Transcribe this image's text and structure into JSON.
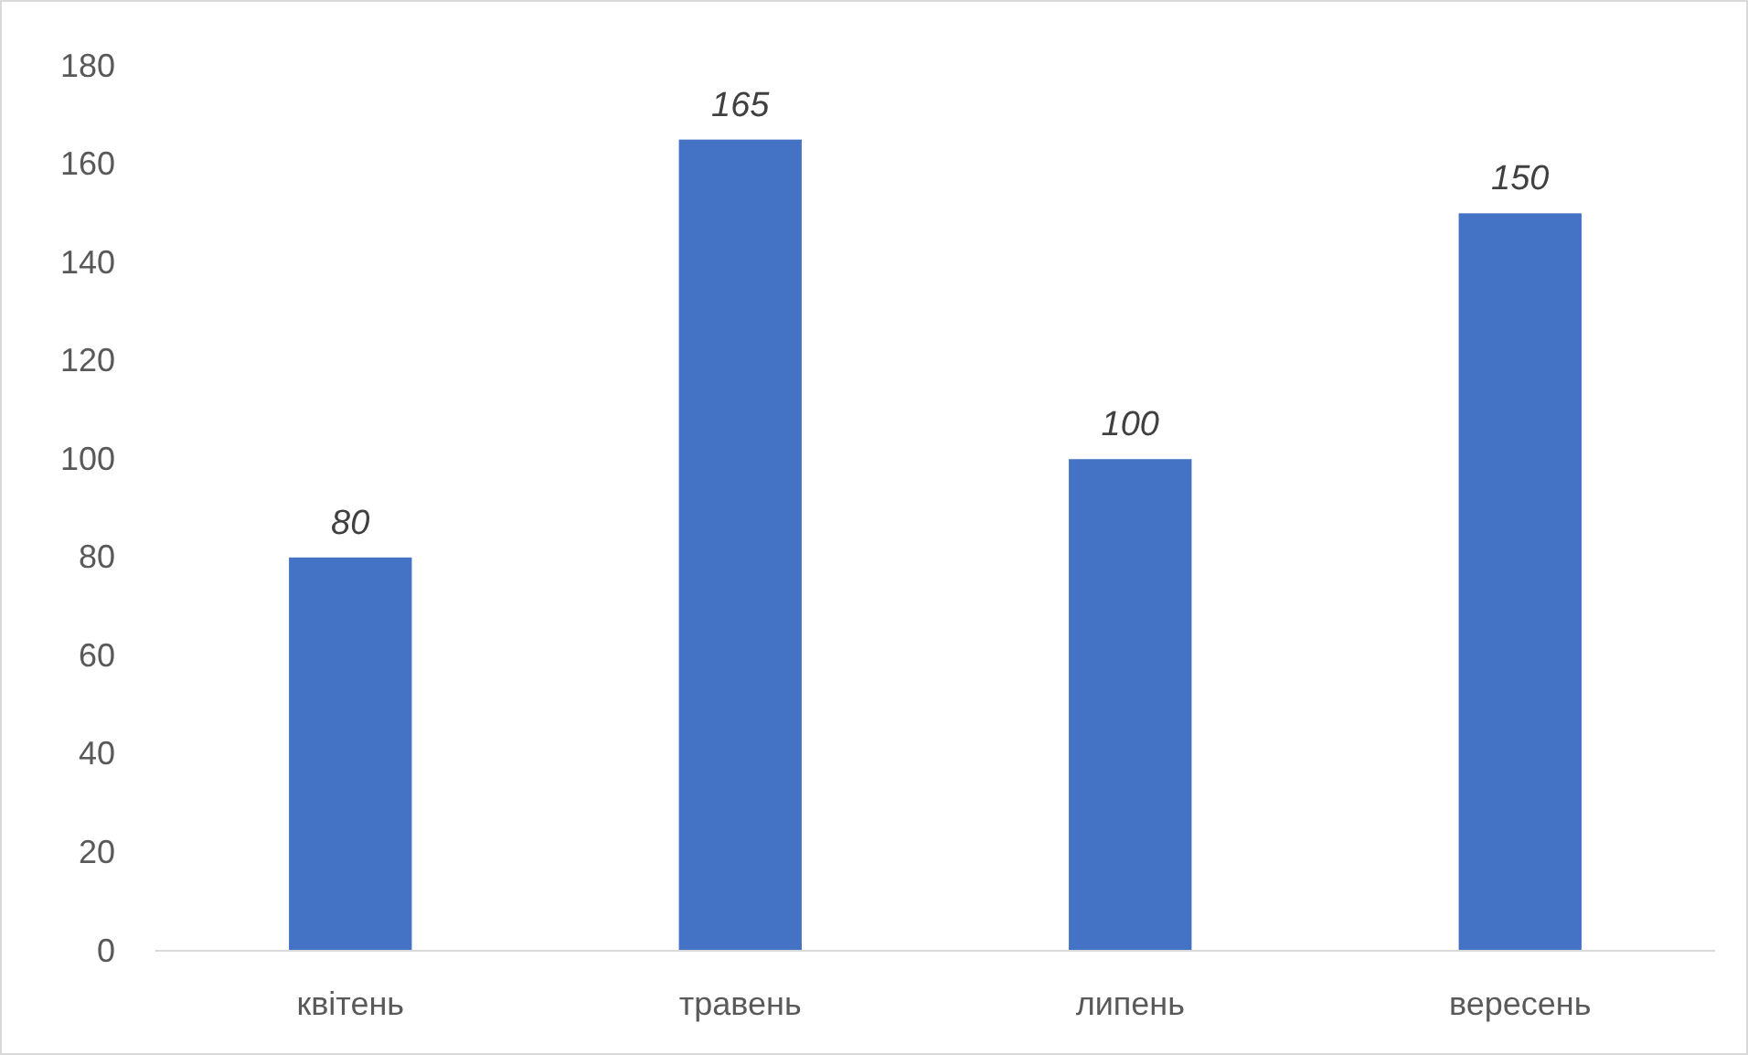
{
  "chart_data": {
    "type": "bar",
    "categories": [
      "квітень",
      "травень",
      "липень",
      "вересень"
    ],
    "values": [
      80,
      165,
      100,
      150
    ],
    "color": "#4472c4",
    "ylim": [
      0,
      180
    ],
    "yticks": [
      0,
      20,
      40,
      60,
      80,
      100,
      120,
      140,
      160,
      180
    ],
    "grid": false,
    "data_labels": true
  }
}
